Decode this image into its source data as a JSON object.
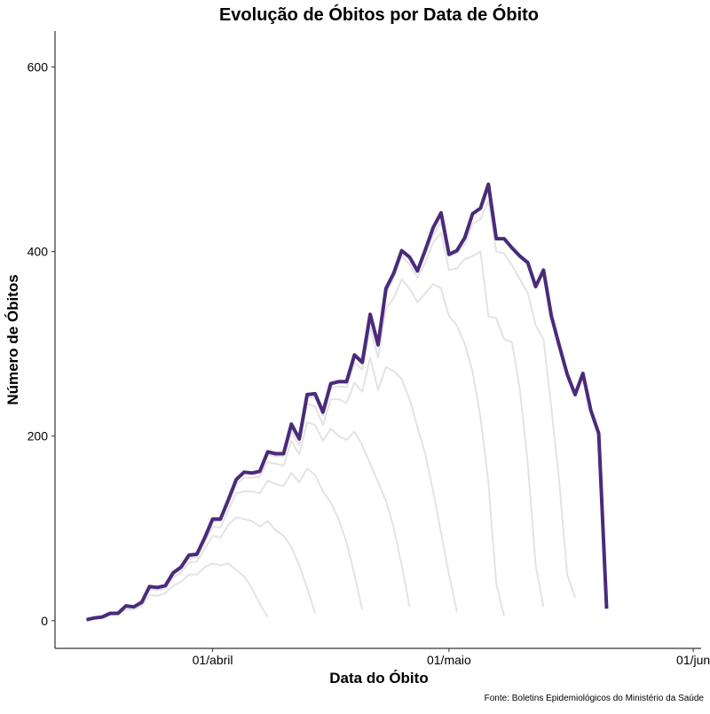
{
  "chart_data": {
    "type": "line",
    "title": "Evolução de Óbitos por Data de Óbito",
    "x_label": "Data do Óbito",
    "y_label": "Número de Óbitos",
    "source": "Fonte: Boletins Epidemiológicos do Ministério da Saúde",
    "x": [
      "03-16",
      "03-17",
      "03-18",
      "03-19",
      "03-20",
      "03-21",
      "03-22",
      "03-23",
      "03-24",
      "03-25",
      "03-26",
      "03-27",
      "03-28",
      "03-29",
      "03-30",
      "03-31",
      "04-01",
      "04-02",
      "04-03",
      "04-04",
      "04-05",
      "04-06",
      "04-07",
      "04-08",
      "04-09",
      "04-10",
      "04-11",
      "04-12",
      "04-13",
      "04-14",
      "04-15",
      "04-16",
      "04-17",
      "04-18",
      "04-19",
      "04-20",
      "04-21",
      "04-22",
      "04-23",
      "04-24",
      "04-25",
      "04-26",
      "04-27",
      "04-28",
      "04-29",
      "04-30",
      "05-01",
      "05-02",
      "05-03",
      "05-04",
      "05-05",
      "05-06",
      "05-07",
      "05-08",
      "05-09",
      "05-10",
      "05-11",
      "05-12",
      "05-13",
      "05-14",
      "05-15",
      "05-16",
      "05-17",
      "05-18",
      "05-19",
      "05-20",
      "05-21"
    ],
    "xlim": [
      "03-12",
      "06-02"
    ],
    "xticks": [
      {
        "value": "04-01",
        "label": "01/abril"
      },
      {
        "value": "05-01",
        "label": "01/maio"
      },
      {
        "value": "06-01",
        "label": "01/jun"
      }
    ],
    "ylim": [
      -30,
      639
    ],
    "yticks": [
      0,
      200,
      400,
      600
    ],
    "series": [
      {
        "color": "#e3e3e3",
        "values": [
          1,
          2,
          3,
          6,
          7,
          12,
          12,
          16,
          28,
          27,
          30,
          38,
          42,
          50,
          50,
          58,
          62,
          60,
          62,
          55,
          48,
          35,
          18,
          4,
          null,
          null,
          null,
          null,
          null,
          null,
          null,
          null,
          null,
          null,
          null,
          null,
          null,
          null,
          null,
          null,
          null,
          null,
          null,
          null,
          null,
          null,
          null,
          null,
          null,
          null,
          null,
          null,
          null,
          null,
          null,
          null,
          null,
          null,
          null,
          null,
          null,
          null,
          null,
          null,
          null,
          null,
          null
        ]
      },
      {
        "color": "#e3e3e3",
        "values": [
          1,
          3,
          4,
          8,
          8,
          15,
          14,
          19,
          34,
          33,
          35,
          47,
          52,
          63,
          64,
          78,
          92,
          90,
          104,
          112,
          110,
          108,
          102,
          108,
          98,
          92,
          80,
          60,
          35,
          8,
          null,
          null,
          null,
          null,
          null,
          null,
          null,
          null,
          null,
          null,
          null,
          null,
          null,
          null,
          null,
          null,
          null,
          null,
          null,
          null,
          null,
          null,
          null,
          null,
          null,
          null,
          null,
          null,
          null,
          null,
          null,
          null,
          null,
          null,
          null,
          null,
          null
        ]
      },
      {
        "color": "#e3e3e3",
        "values": [
          1,
          3,
          4,
          8,
          8,
          16,
          15,
          20,
          36,
          35,
          37,
          50,
          56,
          68,
          69,
          85,
          102,
          101,
          120,
          138,
          140,
          140,
          138,
          152,
          148,
          146,
          160,
          150,
          165,
          158,
          140,
          128,
          110,
          85,
          50,
          12,
          null,
          null,
          null,
          null,
          null,
          null,
          null,
          null,
          null,
          null,
          null,
          null,
          null,
          null,
          null,
          null,
          null,
          null,
          null,
          null,
          null,
          null,
          null,
          null,
          null,
          null,
          null,
          null,
          null,
          null,
          null
        ]
      },
      {
        "color": "#e3e3e3",
        "values": [
          1,
          3,
          4,
          8,
          8,
          16,
          15,
          20,
          37,
          36,
          38,
          52,
          58,
          71,
          72,
          90,
          108,
          108,
          128,
          148,
          155,
          155,
          156,
          172,
          170,
          168,
          195,
          180,
          215,
          212,
          195,
          208,
          200,
          196,
          205,
          190,
          170,
          150,
          130,
          100,
          60,
          15,
          null,
          null,
          null,
          null,
          null,
          null,
          null,
          null,
          null,
          null,
          null,
          null,
          null,
          null,
          null,
          null,
          null,
          null,
          null,
          null,
          null,
          null,
          null,
          null,
          null
        ]
      },
      {
        "color": "#e3e3e3",
        "values": [
          1,
          3,
          4,
          8,
          8,
          16,
          15,
          20,
          37,
          36,
          38,
          52,
          58,
          71,
          72,
          90,
          110,
          110,
          130,
          152,
          160,
          159,
          160,
          180,
          178,
          178,
          205,
          190,
          235,
          232,
          212,
          240,
          240,
          236,
          258,
          248,
          285,
          250,
          275,
          270,
          262,
          240,
          210,
          180,
          140,
          95,
          50,
          10,
          null,
          null,
          null,
          null,
          null,
          null,
          null,
          null,
          null,
          null,
          null,
          null,
          null,
          null,
          null,
          null,
          null,
          null,
          null
        ]
      },
      {
        "color": "#e3e3e3",
        "values": [
          1,
          3,
          4,
          8,
          8,
          16,
          15,
          20,
          37,
          36,
          38,
          52,
          58,
          71,
          72,
          90,
          110,
          110,
          131,
          152,
          160,
          160,
          161,
          181,
          180,
          180,
          210,
          195,
          242,
          242,
          222,
          252,
          254,
          253,
          280,
          272,
          318,
          285,
          338,
          350,
          370,
          360,
          345,
          355,
          365,
          360,
          330,
          320,
          300,
          270,
          220,
          150,
          40,
          5,
          null,
          null,
          null,
          null,
          null,
          null,
          null,
          null,
          null,
          null,
          null,
          null,
          null
        ]
      },
      {
        "color": "#e3e3e3",
        "values": [
          1,
          3,
          4,
          8,
          8,
          16,
          15,
          20,
          37,
          36,
          38,
          52,
          58,
          71,
          72,
          90,
          110,
          110,
          131,
          153,
          161,
          160,
          162,
          182,
          181,
          181,
          212,
          196,
          244,
          245,
          224,
          255,
          258,
          257,
          286,
          278,
          328,
          296,
          355,
          372,
          395,
          386,
          372,
          388,
          410,
          420,
          380,
          382,
          392,
          395,
          400,
          330,
          328,
          305,
          302,
          250,
          170,
          60,
          15,
          null,
          null,
          null,
          null,
          null,
          null,
          null,
          null
        ]
      },
      {
        "color": "#e3e3e3",
        "values": [
          1,
          3,
          4,
          8,
          8,
          16,
          15,
          20,
          37,
          36,
          38,
          52,
          58,
          71,
          72,
          90,
          110,
          110,
          131,
          153,
          161,
          161,
          162,
          183,
          181,
          181,
          213,
          197,
          245,
          246,
          226,
          257,
          259,
          259,
          288,
          280,
          332,
          299,
          360,
          376,
          400,
          392,
          377,
          398,
          418,
          432,
          395,
          398,
          408,
          430,
          435,
          455,
          400,
          398,
          385,
          370,
          355,
          320,
          305,
          230,
          150,
          50,
          25,
          null,
          null,
          null,
          null
        ]
      },
      {
        "color": "#4b2a7b",
        "values": [
          1,
          3,
          4,
          8,
          8,
          16,
          15,
          20,
          37,
          36,
          38,
          52,
          58,
          71,
          72,
          90,
          110,
          110,
          131,
          153,
          161,
          160,
          162,
          183,
          181,
          181,
          213,
          197,
          245,
          246,
          226,
          257,
          259,
          259,
          288,
          280,
          332,
          299,
          360,
          377,
          401,
          394,
          379,
          402,
          426,
          442,
          397,
          401,
          415,
          441,
          447,
          473,
          414,
          414,
          404,
          395,
          388,
          362,
          380,
          330,
          298,
          267,
          245,
          268,
          228,
          203,
          13
        ]
      }
    ]
  }
}
